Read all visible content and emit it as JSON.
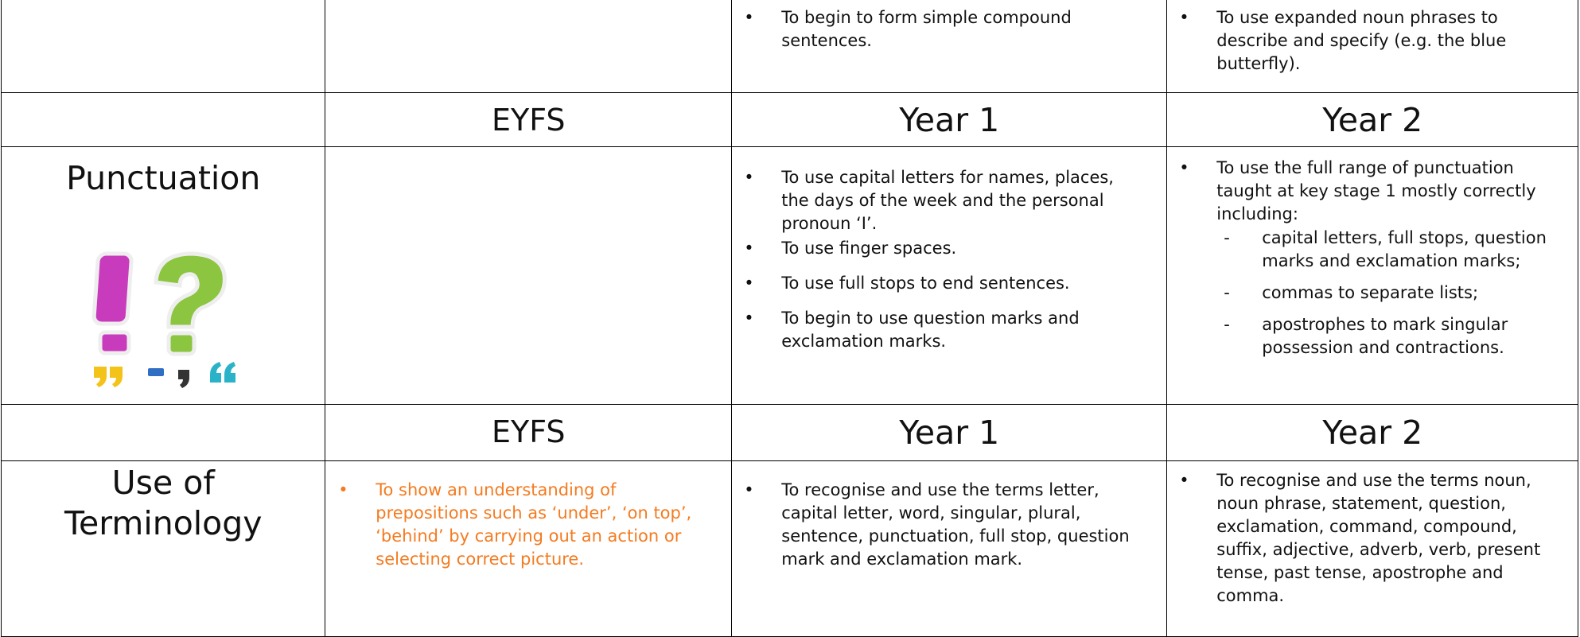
{
  "table": {
    "rows": [
      {
        "year1": [
          "To begin to form simple compound sentences."
        ],
        "year2": [
          "To use expanded noun phrases to describe and specify (e.g. the blue butterfly)."
        ]
      },
      {
        "headers": [
          "EYFS",
          "Year 1",
          "Year 2"
        ]
      },
      {
        "label": "Punctuation",
        "year1": [
          "To use capital letters for names, places, the days of the week and the personal pronoun ‘I’.",
          "To use finger spaces.",
          "To use full stops to end sentences.",
          "To begin to use question marks and exclamation marks."
        ],
        "year2": {
          "intro": "To use the full range of punctuation taught at key stage 1 mostly correctly including:",
          "sub": [
            "capital letters, full stops, question marks and exclamation marks;",
            "commas to separate lists;",
            "apostrophes to mark singular possession and contractions."
          ]
        }
      },
      {
        "headers": [
          "EYFS",
          "Year 1",
          "Year 2"
        ]
      },
      {
        "label": "Use of Terminology",
        "eyfs": [
          "To show an understanding of prepositions such as ‘under’, ‘on top’, ‘behind’ by carrying out an action or selecting correct picture."
        ],
        "year1": [
          "To recognise and use the terms letter, capital letter, word, singular, plural, sentence, punctuation, full stop, question mark and exclamation mark."
        ],
        "year2": [
          "To recognise and use the terms noun, noun phrase, statement, question, exclamation, command, compound, suffix, adjective, adverb, verb, present tense, past tense, apostrophe and comma."
        ]
      }
    ]
  }
}
